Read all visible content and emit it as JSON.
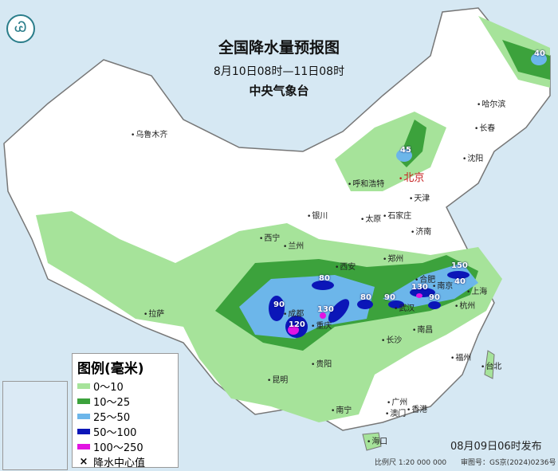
{
  "header": {
    "title": "全国降水量预报图",
    "period": "8月10日08时—11日08时",
    "agency": "中央气象台"
  },
  "legend": {
    "title": "图例(毫米)",
    "items": [
      {
        "label": "0～10",
        "color": "#a6e39a"
      },
      {
        "label": "10～25",
        "color": "#3ca23c"
      },
      {
        "label": "25～50",
        "color": "#6cb6ea"
      },
      {
        "label": "50～100",
        "color": "#0b16b8"
      },
      {
        "label": "100～250",
        "color": "#e214e2"
      }
    ],
    "center_label": "降水中心值",
    "center_symbol": "×"
  },
  "cities": [
    "乌鲁木齐",
    "呼和浩特",
    "北京",
    "天津",
    "太原",
    "石家庄",
    "济南",
    "银川",
    "西宁",
    "兰州",
    "西安",
    "郑州",
    "合肥",
    "南京",
    "上海",
    "杭州",
    "武汉",
    "南昌",
    "长沙",
    "成都",
    "重庆",
    "贵阳",
    "昆明",
    "南宁",
    "广州",
    "澳门",
    "香港",
    "福州",
    "台北",
    "海口",
    "拉萨",
    "哈尔滨",
    "长春",
    "沈阳"
  ],
  "rain_centers": [
    "40",
    "45",
    "90",
    "80",
    "80",
    "120",
    "130",
    "90",
    "130",
    "150",
    "40",
    "90"
  ],
  "footer": {
    "published": "08月09日06时发布",
    "scale": "比例尺 1:20 000 000",
    "review": "审图号：GS京(2024)0236号"
  }
}
